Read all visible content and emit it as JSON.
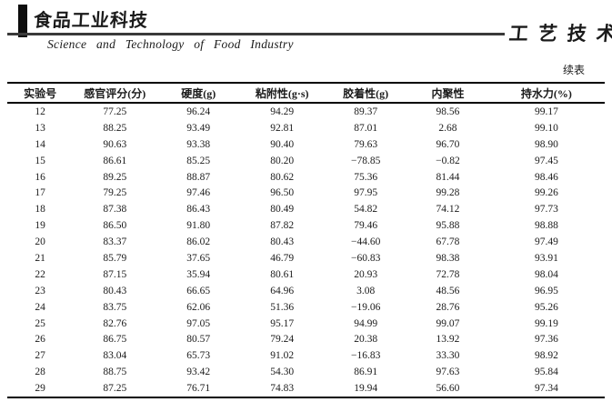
{
  "masthead": {
    "journal_logo": "食品工业科技",
    "journal_subtitle": "Science and Technology of Food Industry",
    "section_title": "工艺技术"
  },
  "continued_label": "续表",
  "table": {
    "columns": [
      "实验号",
      "感官评分(分)",
      "硬度(g)",
      "粘附性(g·s)",
      "胶着性(g)",
      "内聚性",
      "持水力(%)"
    ],
    "rows": [
      [
        "12",
        "77.25",
        "96.24",
        "94.29",
        "89.37",
        "98.56",
        "99.17"
      ],
      [
        "13",
        "88.25",
        "93.49",
        "92.81",
        "87.01",
        "2.68",
        "99.10"
      ],
      [
        "14",
        "90.63",
        "93.38",
        "90.40",
        "79.63",
        "96.70",
        "98.90"
      ],
      [
        "15",
        "86.61",
        "85.25",
        "80.20",
        "−78.85",
        "−0.82",
        "97.45"
      ],
      [
        "16",
        "89.25",
        "88.87",
        "80.62",
        "75.36",
        "81.44",
        "98.46"
      ],
      [
        "17",
        "79.25",
        "97.46",
        "96.50",
        "97.95",
        "99.28",
        "99.26"
      ],
      [
        "18",
        "87.38",
        "86.43",
        "80.49",
        "54.82",
        "74.12",
        "97.73"
      ],
      [
        "19",
        "86.50",
        "91.80",
        "87.82",
        "79.46",
        "95.88",
        "98.88"
      ],
      [
        "20",
        "83.37",
        "86.02",
        "80.43",
        "−44.60",
        "67.78",
        "97.49"
      ],
      [
        "21",
        "85.79",
        "37.65",
        "46.79",
        "−60.83",
        "98.38",
        "93.91"
      ],
      [
        "22",
        "87.15",
        "35.94",
        "80.61",
        "20.93",
        "72.78",
        "98.04"
      ],
      [
        "23",
        "80.43",
        "66.65",
        "64.96",
        "3.08",
        "48.56",
        "96.95"
      ],
      [
        "24",
        "83.75",
        "62.06",
        "51.36",
        "−19.06",
        "28.76",
        "95.26"
      ],
      [
        "25",
        "82.76",
        "97.05",
        "95.17",
        "94.99",
        "99.07",
        "99.19"
      ],
      [
        "26",
        "86.75",
        "80.57",
        "79.24",
        "20.38",
        "13.92",
        "97.36"
      ],
      [
        "27",
        "83.04",
        "65.73",
        "91.02",
        "−16.83",
        "33.30",
        "98.92"
      ],
      [
        "28",
        "88.75",
        "93.42",
        "54.30",
        "86.91",
        "97.63",
        "95.84"
      ],
      [
        "29",
        "87.25",
        "76.71",
        "74.83",
        "19.94",
        "56.60",
        "97.34"
      ]
    ]
  }
}
